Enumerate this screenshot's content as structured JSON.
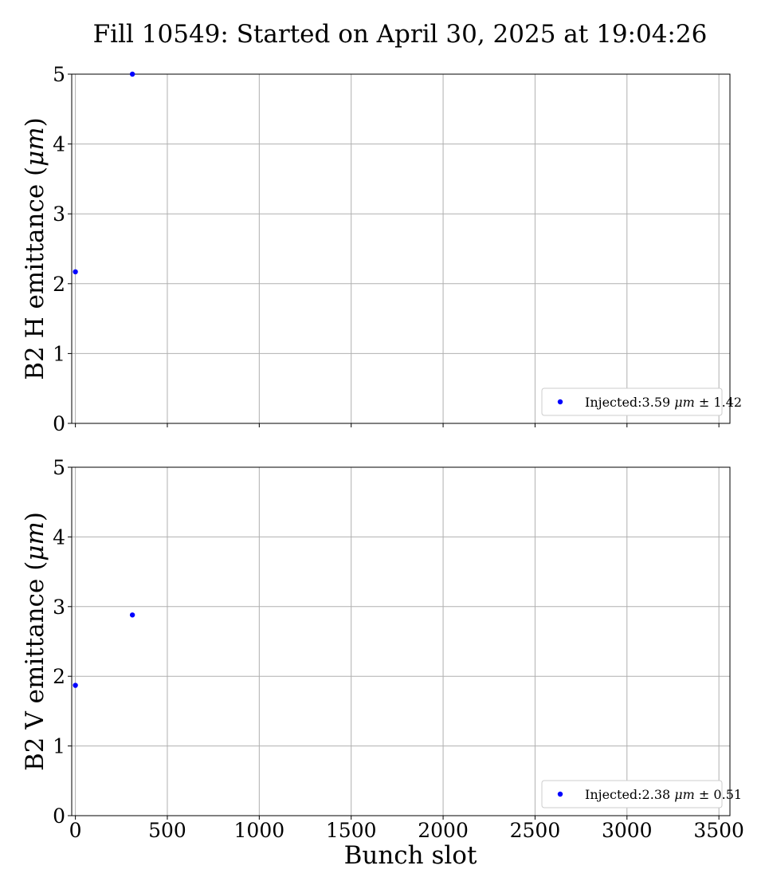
{
  "figure": {
    "title": "Fill 10549: Started on April 30, 2025 at 19:04:26"
  },
  "chart_data": [
    {
      "type": "scatter",
      "ylabel": "B2 H emittance (μm)",
      "xlabel": "",
      "xlim": [
        -20,
        3560
      ],
      "ylim": [
        0,
        5
      ],
      "x_ticks": [
        0,
        500,
        1000,
        1500,
        2000,
        2500,
        3000,
        3500
      ],
      "y_ticks": [
        0,
        1,
        2,
        3,
        4,
        5
      ],
      "grid": true,
      "legend_position": "lower-right",
      "series": [
        {
          "name": "Injected:3.59 μm ± 1.42",
          "color": "#0000ff",
          "points": [
            [
              0,
              2.17
            ],
            [
              310,
              5.0
            ]
          ]
        }
      ]
    },
    {
      "type": "scatter",
      "ylabel": "B2 V emittance (μm)",
      "xlabel": "Bunch slot",
      "xlim": [
        -20,
        3560
      ],
      "ylim": [
        0,
        5
      ],
      "x_ticks": [
        0,
        500,
        1000,
        1500,
        2000,
        2500,
        3000,
        3500
      ],
      "y_ticks": [
        0,
        1,
        2,
        3,
        4,
        5
      ],
      "grid": true,
      "legend_position": "lower-right",
      "series": [
        {
          "name": "Injected:2.38 μm ± 0.51",
          "color": "#0000ff",
          "points": [
            [
              0,
              1.87
            ],
            [
              310,
              2.88
            ]
          ]
        }
      ]
    }
  ]
}
